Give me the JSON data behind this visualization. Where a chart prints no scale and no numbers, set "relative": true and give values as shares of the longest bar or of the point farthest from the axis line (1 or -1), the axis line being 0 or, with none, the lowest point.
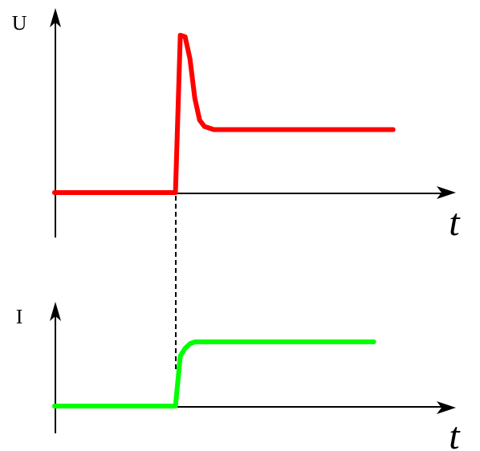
{
  "chart_data": [
    {
      "type": "line",
      "xlabel": "t",
      "ylabel": "U",
      "relative": true,
      "tick_labels": false,
      "line_style": "solid",
      "categories": [
        null,
        null,
        null,
        null,
        null,
        null,
        null,
        null,
        null,
        null,
        null,
        null,
        null,
        null,
        null,
        null,
        null,
        null,
        null,
        null,
        null,
        null,
        null,
        null,
        null,
        null,
        null,
        null,
        null,
        null,
        null,
        null,
        null,
        null,
        null,
        null,
        null,
        null,
        null,
        null,
        null,
        null,
        null,
        null,
        null,
        null,
        null,
        null,
        null,
        null,
        null,
        null,
        null,
        null,
        null,
        null,
        null,
        null,
        null,
        null,
        null,
        null,
        null,
        null,
        null,
        null,
        null,
        null,
        null,
        null,
        null,
        null,
        null,
        null,
        null,
        null,
        null,
        null,
        null,
        null,
        null,
        null,
        null,
        null
      ],
      "series": [
        {
          "color": "#ff0000",
          "values": [
            0,
            0,
            0,
            0,
            0,
            0,
            0,
            0,
            0,
            0,
            0,
            0,
            0,
            0,
            0,
            0,
            0,
            0,
            0,
            0,
            0,
            0,
            0,
            0,
            0,
            0,
            1,
            0.99,
            0.85,
            0.6,
            0.46,
            0.42,
            0.41,
            0.4,
            0.4,
            0.4,
            0.4,
            0.4,
            0.4,
            0.4,
            0.4,
            0.4,
            0.4,
            0.4,
            0.4,
            0.4,
            0.4,
            0.4,
            0.4,
            0.4,
            0.4,
            0.4,
            0.4,
            0.4,
            0.4,
            0.4,
            0.4,
            0.4,
            0.4,
            0.4,
            0.4,
            0.4,
            0.4,
            0.4,
            0.4,
            0.4,
            0.4,
            0.4,
            0.4,
            0.4,
            0.4,
            null,
            null,
            null,
            null,
            null,
            null,
            null,
            null,
            null,
            null,
            null,
            null,
            null
          ]
        }
      ]
    },
    {
      "type": "line",
      "xlabel": "t",
      "ylabel": "I",
      "relative": true,
      "tick_labels": false,
      "line_style": "solid",
      "categories": [
        null,
        null,
        null,
        null,
        null,
        null,
        null,
        null,
        null,
        null,
        null,
        null,
        null,
        null,
        null,
        null,
        null,
        null,
        null,
        null,
        null,
        null,
        null,
        null,
        null,
        null,
        null,
        null,
        null,
        null,
        null,
        null,
        null,
        null,
        null,
        null,
        null,
        null,
        null,
        null,
        null,
        null,
        null,
        null,
        null,
        null,
        null,
        null,
        null,
        null,
        null,
        null,
        null,
        null,
        null,
        null,
        null,
        null,
        null,
        null,
        null,
        null,
        null,
        null,
        null,
        null,
        null,
        null,
        null,
        null,
        null,
        null,
        null,
        null,
        null,
        null,
        null,
        null,
        null,
        null,
        null,
        null,
        null,
        null
      ],
      "series": [
        {
          "color": "#00ff00",
          "values": [
            0,
            0,
            0,
            0,
            0,
            0,
            0,
            0,
            0,
            0,
            0,
            0,
            0,
            0,
            0,
            0,
            0,
            0,
            0,
            0,
            0,
            0,
            0,
            0,
            0,
            0,
            0.78,
            0.9,
            0.97,
            1,
            1,
            1,
            1,
            1,
            1,
            1,
            1,
            1,
            1,
            1,
            1,
            1,
            1,
            1,
            1,
            1,
            1,
            1,
            1,
            1,
            1,
            1,
            1,
            1,
            1,
            1,
            1,
            1,
            1,
            1,
            1,
            1,
            1,
            1,
            1,
            1,
            1,
            null,
            null,
            null,
            null,
            null,
            null,
            null,
            null,
            null,
            null,
            null,
            null,
            null,
            null,
            null,
            null,
            null
          ]
        }
      ]
    }
  ]
}
